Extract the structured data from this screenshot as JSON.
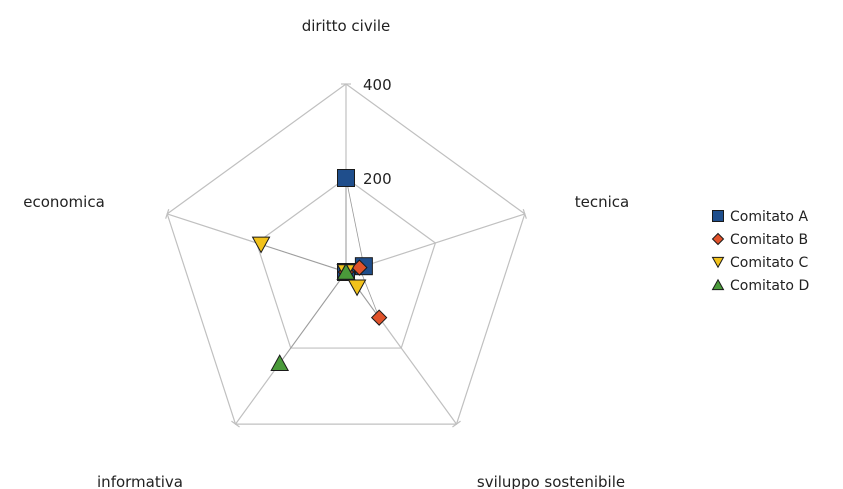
{
  "chart_data": {
    "type": "radar",
    "title": "",
    "axes": [
      "diritto civile",
      "tecnica",
      "sviluppo sostenibile",
      "informativa",
      "economica"
    ],
    "rmax": 400,
    "ticks": [
      200,
      400
    ],
    "grid": true,
    "grid_color": "#c0c0c0",
    "legend_position": "right",
    "series": [
      {
        "name": "Comitato A",
        "marker": "square",
        "color": "#1f4e8c",
        "values": [
          200,
          40,
          0,
          0,
          0
        ]
      },
      {
        "name": "Comitato B",
        "marker": "diamond",
        "color": "#e0522a",
        "values": [
          0,
          30,
          120,
          0,
          0
        ]
      },
      {
        "name": "Comitato C",
        "marker": "triangle-down",
        "color": "#f2c21b",
        "values": [
          0,
          0,
          40,
          0,
          190
        ]
      },
      {
        "name": "Comitato D",
        "marker": "triangle-up",
        "color": "#4a9a3a",
        "values": [
          0,
          0,
          0,
          240,
          0
        ]
      }
    ]
  }
}
